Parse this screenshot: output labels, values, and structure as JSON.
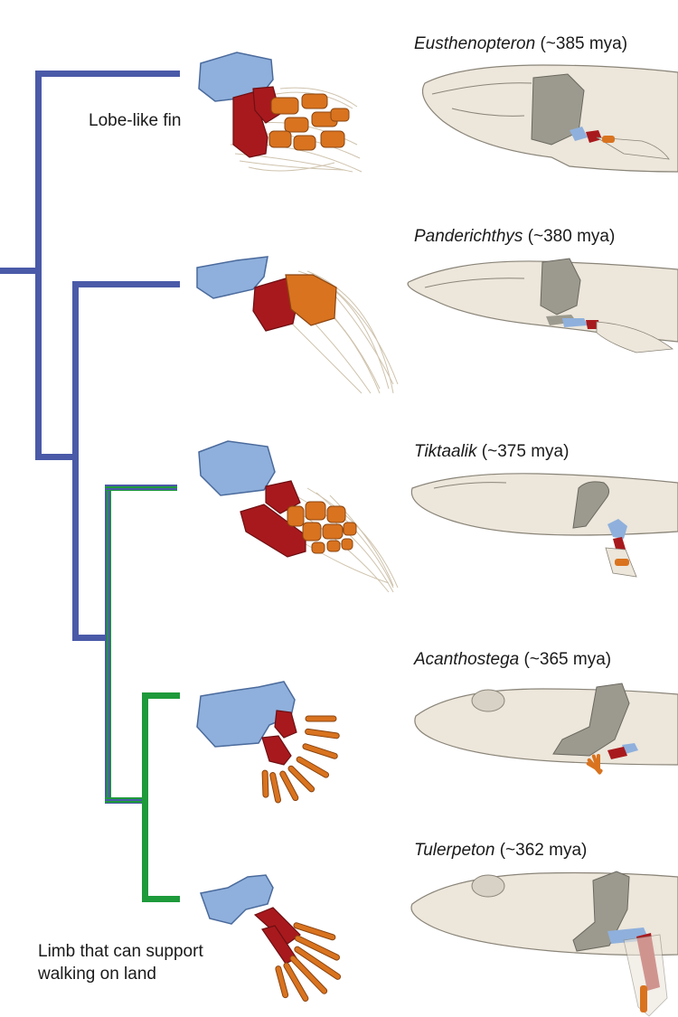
{
  "taxa": [
    {
      "name": "Eusthenopteron",
      "age": "(~385 mya)"
    },
    {
      "name": "Panderichthys",
      "age": "(~380 mya)"
    },
    {
      "name": "Tiktaalik",
      "age": "(~375 mya)"
    },
    {
      "name": "Acanthostega",
      "age": "(~365 mya)"
    },
    {
      "name": "Tulerpeton",
      "age": "(~362 mya)"
    }
  ],
  "annotations": {
    "lobe_fin": "Lobe-like fin",
    "limb_line1": "Limb that can support",
    "limb_line2": "walking on land"
  },
  "colors": {
    "fin_lineage": "#4a5aa8",
    "limb_lineage": "#1d9a3a",
    "humerus": "#8fb0dc",
    "radius_ulna": "#a8191d",
    "distal_bones": "#d9731f",
    "fin_rays": "#cfc3ad",
    "body": "#ece6db",
    "shoulder_girdle": "#9c9a8e"
  }
}
